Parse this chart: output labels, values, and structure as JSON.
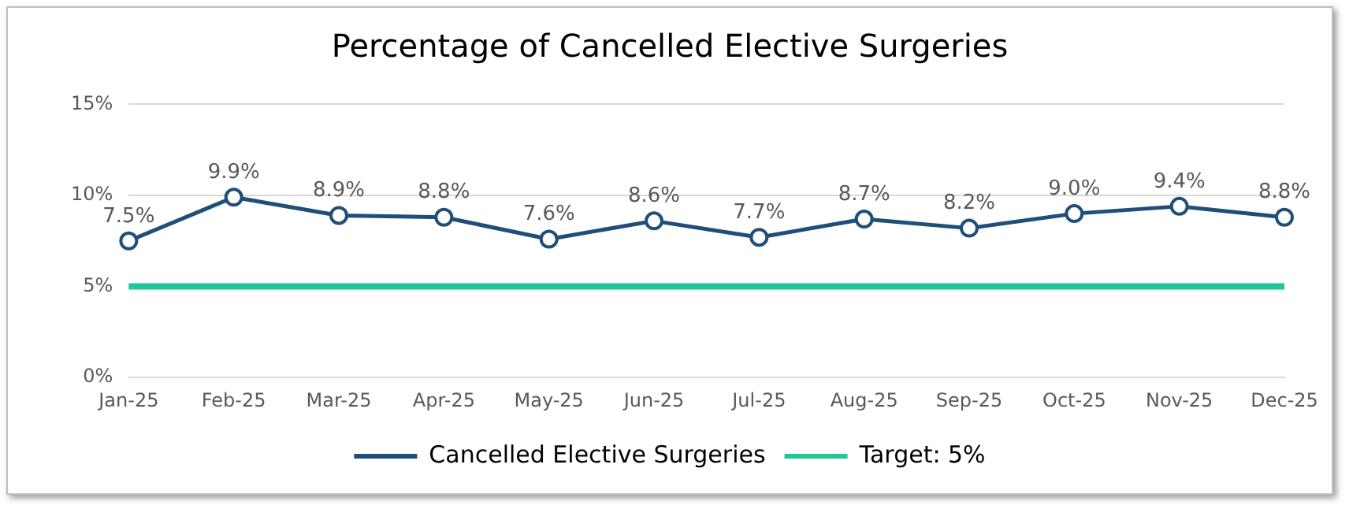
{
  "chart_data": {
    "type": "line",
    "title": "Percentage of Cancelled Elective Surgeries",
    "categories": [
      "Jan-25",
      "Feb-25",
      "Mar-25",
      "Apr-25",
      "May-25",
      "Jun-25",
      "Jul-25",
      "Aug-25",
      "Sep-25",
      "Oct-25",
      "Nov-25",
      "Dec-25"
    ],
    "series": [
      {
        "name": "Cancelled Elective Surgeries",
        "color": "#1f4e79",
        "marker": "circle",
        "values": [
          7.5,
          9.9,
          8.9,
          8.8,
          7.6,
          8.6,
          7.7,
          8.7,
          8.2,
          9.0,
          9.4,
          8.8
        ],
        "value_labels": [
          "7.5%",
          "9.9%",
          "8.9%",
          "8.8%",
          "7.6%",
          "8.6%",
          "7.7%",
          "8.7%",
          "8.2%",
          "9.0%",
          "9.4%",
          "8.8%"
        ]
      },
      {
        "name": "Target: 5%",
        "color": "#1fc796",
        "marker": "none",
        "values": [
          5,
          5,
          5,
          5,
          5,
          5,
          5,
          5,
          5,
          5,
          5,
          5
        ]
      }
    ],
    "ylim": [
      0,
      15
    ],
    "yticks": [
      {
        "value": 0,
        "label": "0%"
      },
      {
        "value": 5,
        "label": "5%"
      },
      {
        "value": 10,
        "label": "10%"
      },
      {
        "value": 15,
        "label": "15%"
      }
    ],
    "grid": "y",
    "legend": "bottom",
    "line_style": "solid"
  }
}
